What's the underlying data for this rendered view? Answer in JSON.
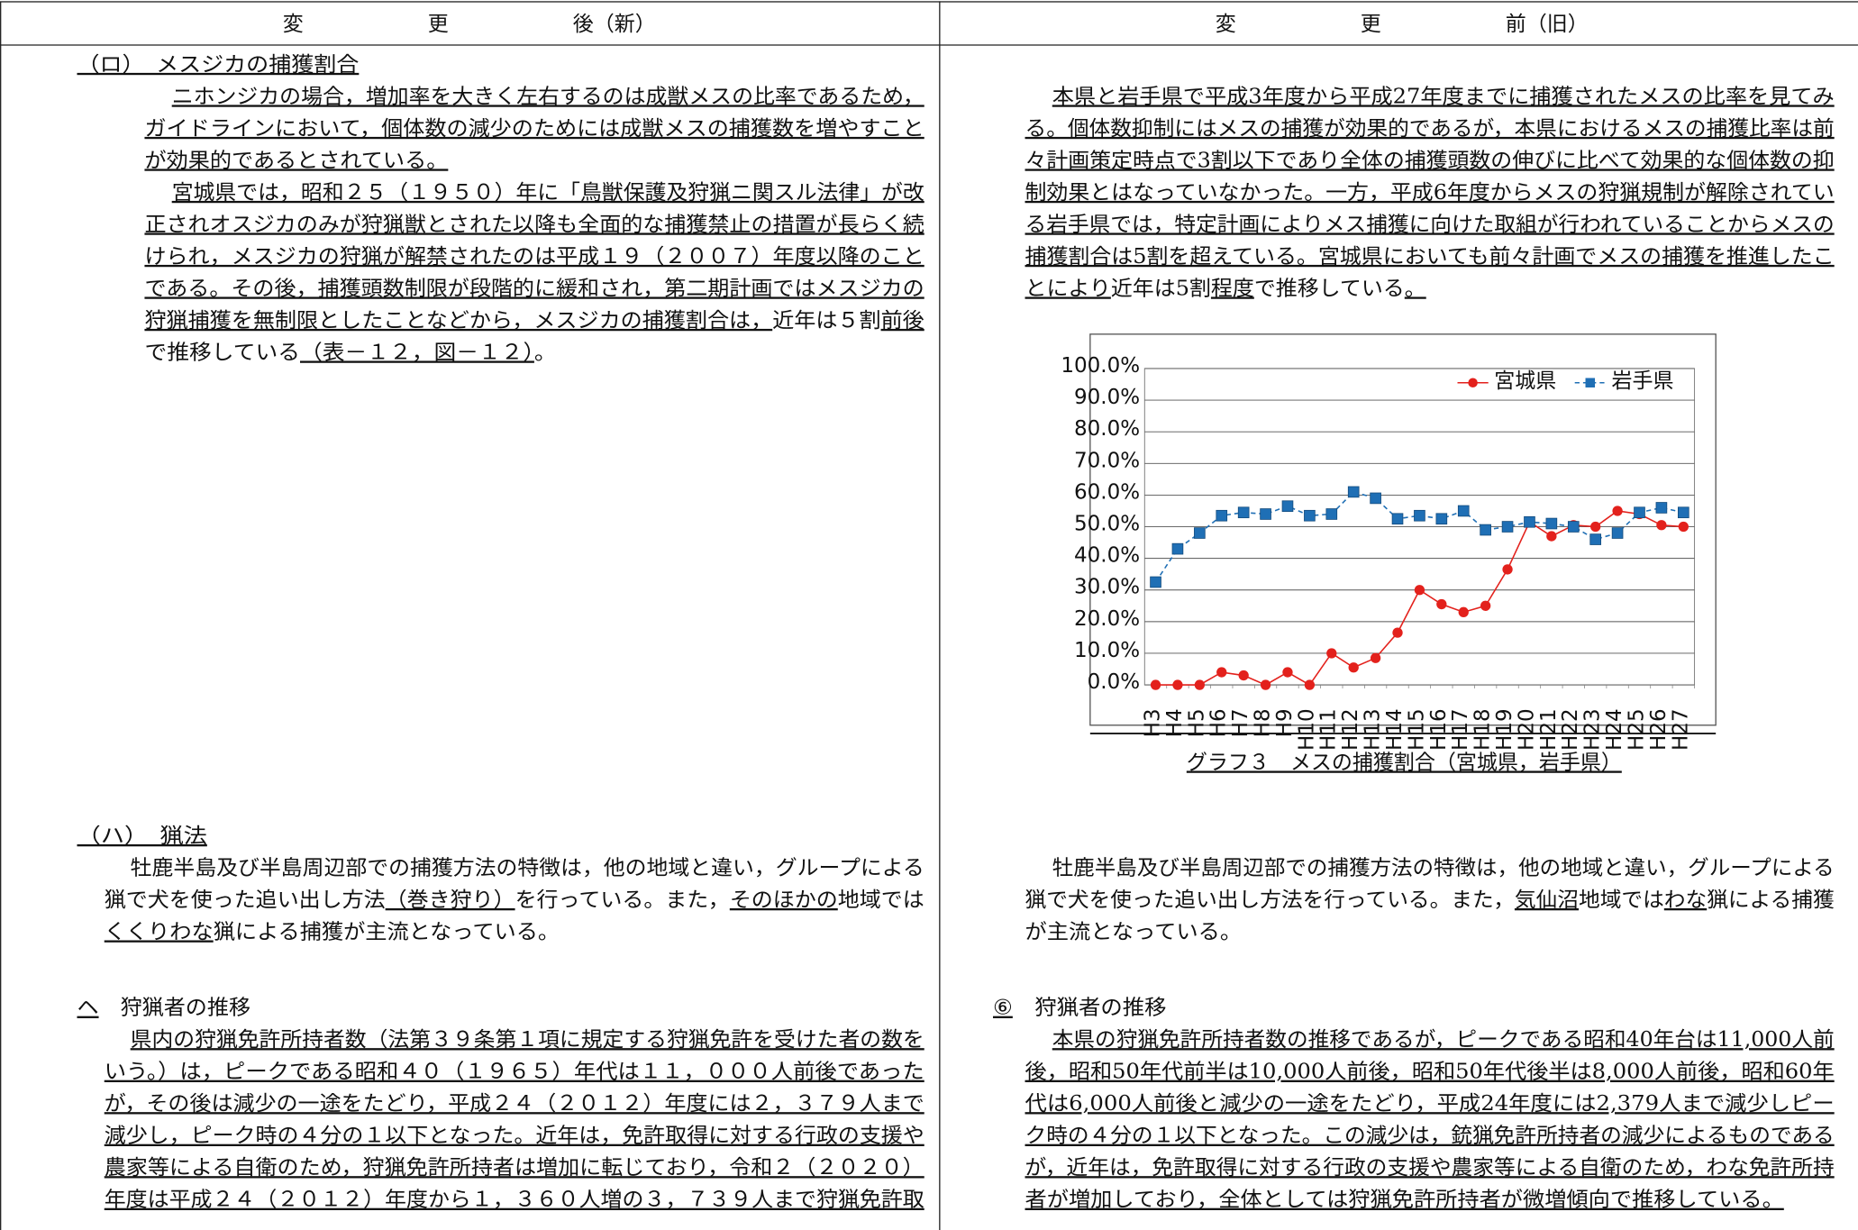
{
  "header": {
    "left": "変　　　　　　更　　　　　　後（新）",
    "right": "変　　　　　　更　　　　　　前（旧）"
  },
  "left": {
    "lines": [
      [
        {
          "text": "（ロ）　メスジカの捕獲割合",
          "underline": true
        }
      ],
      [
        {
          "text": "ニホンジカの場合，増加率を大きく左右するのは成獣メスの比率であるため，",
          "underline": true
        }
      ],
      [
        {
          "text": "ガイドラインにおいて，個体数の減少のためには成獣メスの捕獲数を増やすこと",
          "underline": true
        }
      ],
      [
        {
          "text": "が効果的であるとされている。",
          "underline": true
        }
      ],
      [
        {
          "text": "宮城県では，昭和２５（１９５０）年に「鳥獣保護及狩猟ニ関スル法律」が改",
          "underline": true
        }
      ],
      [
        {
          "text": "正されオスジカのみが狩猟獣とされた以降も全面的な捕獲禁止の措置が長らく続",
          "underline": true
        }
      ],
      [
        {
          "text": "けられ，メスジカの狩猟が解禁されたのは平成１９（２００７）年度以降のこと",
          "underline": true
        }
      ],
      [
        {
          "text": "である。その後，捕獲頭数制限が段階的に緩和され，第二期計画ではメスジカの",
          "underline": true
        }
      ],
      [
        {
          "text": "狩猟捕獲を無制限としたことなどから，メスジカの捕獲割合は，",
          "underline": true
        },
        {
          "text": "近年は５割"
        },
        {
          "text": "前後",
          "underline": true
        }
      ],
      [
        {
          "text": "で推移している"
        },
        {
          "text": "（表－１２，図－１２）",
          "underline": true
        },
        {
          "text": "。"
        }
      ],
      [
        {
          "text": "（ハ）　猟法",
          "underline": true
        }
      ],
      [
        {
          "text": "牡鹿半島及び半島周辺部での捕獲方法の特徴は，他の地域と違い，グループによる"
        }
      ],
      [
        {
          "text": "猟で犬を使った追い出し方法"
        },
        {
          "text": "（巻き狩り）",
          "underline": true
        },
        {
          "text": "を行っている。また，"
        },
        {
          "text": "そのほかの",
          "underline": true
        },
        {
          "text": "地域では"
        }
      ],
      [
        {
          "text": "くくりわな",
          "underline": true
        },
        {
          "text": "猟による捕獲が主流となっている。"
        }
      ],
      [
        {
          "text": "ヘ",
          "underline": true
        },
        {
          "text": "　狩猟者の推移"
        }
      ],
      [
        {
          "text": "県内の狩猟免許所持者数（法第３９条第１項に規定する狩猟免許を受けた者の数を",
          "underline": true
        }
      ],
      [
        {
          "text": "いう。）は，ピークである昭和４０（１９６５）年代は１１，０００人前後であった",
          "underline": true
        }
      ],
      [
        {
          "text": "が，その後は減少の一途をたどり，平成２４（２０１２）年度には２，３７９人まで",
          "underline": true
        }
      ],
      [
        {
          "text": "減少し，ピーク時の４分の１以下となった。近年は，免許取得に対する行政の支援や",
          "underline": true
        }
      ],
      [
        {
          "text": "農家等による自衛のため，狩猟免許所持者は増加に転じており，令和２（２０２０）",
          "underline": true
        }
      ],
      [
        {
          "text": "年度は平成２４（２０１２）年度から１，３６０人増の３，７３９人まで狩猟免許取",
          "underline": true
        }
      ]
    ]
  },
  "right": {
    "lines": [
      [
        {
          "text": "本県と岩手県で平成3年度から平成27年度までに捕獲されたメスの比率を見てみ",
          "underline": true
        }
      ],
      [
        {
          "text": "る。個体数抑制にはメスの捕獲が効果的であるが，本県におけるメスの捕獲比率は前",
          "underline": true
        }
      ],
      [
        {
          "text": "々計画策定時点で3割以下であり全体の捕獲頭数の伸びに比べて効果的な個体数の抑",
          "underline": true
        }
      ],
      [
        {
          "text": "制効果とはなっていなかった。一方，平成6年度からメスの狩猟規制が解除されてい",
          "underline": true
        }
      ],
      [
        {
          "text": "る岩手県では，特定計画によりメス捕獲に向けた取組が行われていることからメスの",
          "underline": true
        }
      ],
      [
        {
          "text": "捕獲割合は5割を超えている。宮城県においても前々計画でメスの捕獲を推進したこ",
          "underline": true
        }
      ],
      [
        {
          "text": "とにより",
          "underline": true
        },
        {
          "text": "近年は5割"
        },
        {
          "text": "程度",
          "underline": true
        },
        {
          "text": "で推移している"
        },
        {
          "text": "。",
          "underline": true
        }
      ],
      [
        {
          "text": "牡鹿半島及び半島周辺部での捕獲方法の特徴は，他の地域と違い，グループによる"
        }
      ],
      [
        {
          "text": "猟で犬を使った追い出し方法を行っている。また，"
        },
        {
          "text": "気仙沼",
          "underline": true
        },
        {
          "text": "地域では"
        },
        {
          "text": "わな",
          "underline": true
        },
        {
          "text": "猟による捕獲"
        }
      ],
      [
        {
          "text": "が主流となっている。"
        }
      ],
      [
        {
          "text": "⑥",
          "underline": true
        },
        {
          "text": "　狩猟者の推移"
        }
      ],
      [
        {
          "text": "本県の狩猟免許所持者数の推移であるが，ピークである昭和40年台は11,000人前",
          "underline": true
        }
      ],
      [
        {
          "text": "後，昭和50年代前半は10,000人前後，昭和50年代後半は8,000人前後，昭和60年",
          "underline": true
        }
      ],
      [
        {
          "text": "代は6,000人前後と減少の一途をたどり，平成24年度には2,379人まで減少しピー",
          "underline": true
        }
      ],
      [
        {
          "text": "ク時の４分の１以下となった。この減少は，銃猟免許所持者の減少によるものである",
          "underline": true
        }
      ],
      [
        {
          "text": "が，近年は，免許取得に対する行政の支援や農家等による自衛のため，わな免許所持",
          "underline": true
        }
      ],
      [
        {
          "text": "者が増加しており，全体としては狩猟免許所持者が微増傾向で推移している。",
          "underline": true
        }
      ]
    ],
    "caption": "グラフ３　メスの捕獲割合（宮城県，岩手県）"
  },
  "chart": {
    "type": "line",
    "categories": [
      "H3",
      "H4",
      "H5",
      "H6",
      "H7",
      "H8",
      "H9",
      "H10",
      "H11",
      "H12",
      "H13",
      "H14",
      "H15",
      "H16",
      "H17",
      "H18",
      "H19",
      "H20",
      "H21",
      "H22",
      "H23",
      "H24",
      "H25",
      "H26",
      "H27"
    ],
    "series": [
      {
        "name": "宮城県",
        "color": "#e3211c",
        "marker": "circle",
        "dashed": false,
        "values": [
          0,
          0,
          0,
          4,
          3,
          0,
          4,
          0,
          10,
          5.5,
          8.5,
          16.5,
          30,
          25.5,
          23,
          25,
          36.5,
          51.5,
          47,
          50.5,
          50,
          55,
          54,
          50.5,
          50
        ]
      },
      {
        "name": "岩手県",
        "color": "#1f6fb5",
        "marker": "square",
        "dashed": true,
        "values": [
          32.5,
          43,
          48,
          53.5,
          54.5,
          54,
          56.5,
          53.5,
          54,
          61,
          59,
          52.5,
          53.5,
          52.5,
          55,
          49,
          50,
          51.5,
          51,
          50,
          46,
          48,
          54.5,
          56,
          54.5
        ]
      }
    ],
    "ylim": [
      0,
      100
    ],
    "yticks": [
      {
        "value": 0,
        "label": "0.0%"
      },
      {
        "value": 10,
        "label": "10.0%"
      },
      {
        "value": 20,
        "label": "20.0%"
      },
      {
        "value": 30,
        "label": "30.0%"
      },
      {
        "value": 40,
        "label": "40.0%"
      },
      {
        "value": 50,
        "label": "50.0%"
      },
      {
        "value": 60,
        "label": "60.0%"
      },
      {
        "value": 70,
        "label": "70.0%"
      },
      {
        "value": 80,
        "label": "80.0%"
      },
      {
        "value": 90,
        "label": "90.0%"
      },
      {
        "value": 100,
        "label": "100.0%"
      }
    ],
    "grid": true,
    "legend": "upper right"
  }
}
